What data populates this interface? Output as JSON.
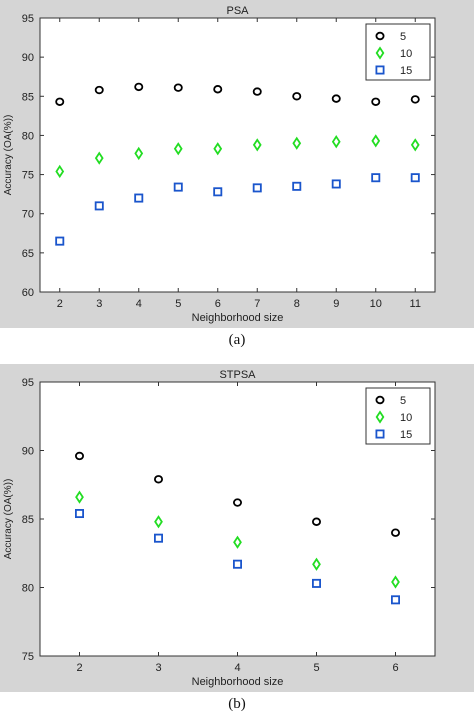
{
  "chart_data": [
    {
      "type": "scatter",
      "title": "PSA",
      "xlabel": "Neighborhood size",
      "ylabel": "Accuracy (OA(%))",
      "caption": "(a)",
      "x": [
        2,
        3,
        4,
        5,
        6,
        7,
        8,
        9,
        10,
        11
      ],
      "xlim": [
        1.5,
        11.5
      ],
      "ylim": [
        60,
        95
      ],
      "yticks": [
        60,
        65,
        70,
        75,
        80,
        85,
        90,
        95
      ],
      "legend_position": "top-right",
      "series": [
        {
          "name": "5",
          "marker": "circle",
          "color": "#000000",
          "values": [
            84.3,
            85.8,
            86.2,
            86.1,
            85.9,
            85.6,
            85.0,
            84.7,
            84.3,
            84.6
          ]
        },
        {
          "name": "10",
          "marker": "diamond",
          "color": "#22dd22",
          "values": [
            75.4,
            77.1,
            77.7,
            78.3,
            78.3,
            78.8,
            79.0,
            79.2,
            79.3,
            78.8
          ]
        },
        {
          "name": "15",
          "marker": "square",
          "color": "#1a55cc",
          "values": [
            66.5,
            71.0,
            72.0,
            73.4,
            72.8,
            73.3,
            73.5,
            73.8,
            74.6,
            74.6
          ]
        }
      ]
    },
    {
      "type": "scatter",
      "title": "STPSA",
      "xlabel": "Neighborhood size",
      "ylabel": "Accuracy (OA(%))",
      "caption": "(b)",
      "x": [
        2,
        3,
        4,
        5,
        6
      ],
      "xlim": [
        1.5,
        6.5
      ],
      "ylim": [
        75,
        95
      ],
      "yticks": [
        75,
        80,
        85,
        90,
        95
      ],
      "legend_position": "top-right",
      "series": [
        {
          "name": "5",
          "marker": "circle",
          "color": "#000000",
          "values": [
            89.6,
            87.9,
            86.2,
            84.8,
            84.0
          ]
        },
        {
          "name": "10",
          "marker": "diamond",
          "color": "#22dd22",
          "values": [
            86.6,
            84.8,
            83.3,
            81.7,
            80.4
          ]
        },
        {
          "name": "15",
          "marker": "square",
          "color": "#1a55cc",
          "values": [
            85.4,
            83.6,
            81.7,
            80.3,
            79.1
          ]
        }
      ]
    }
  ]
}
